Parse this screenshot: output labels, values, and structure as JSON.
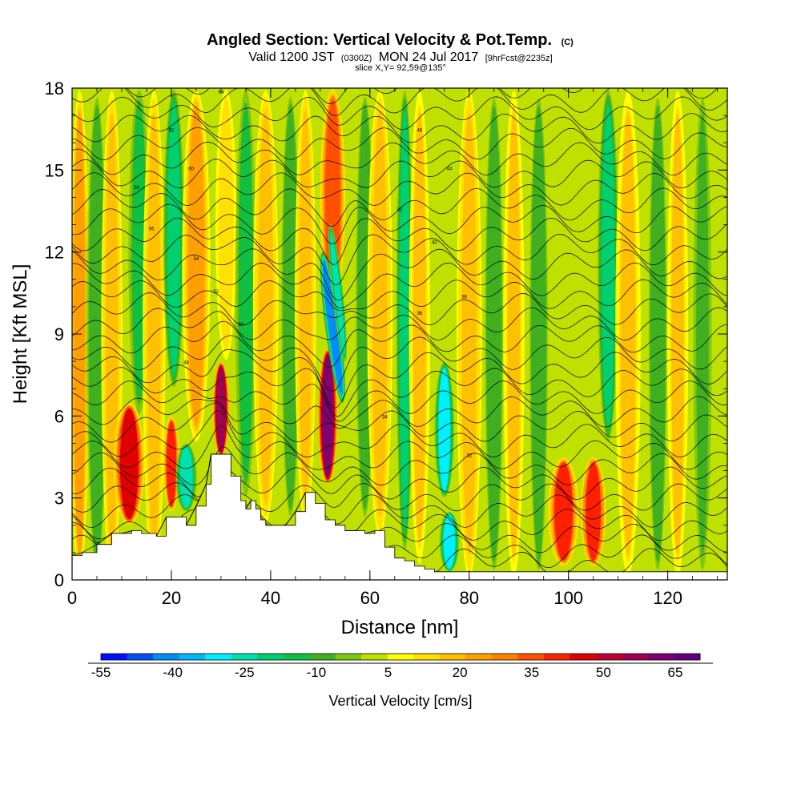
{
  "chart_data": {
    "type": "heatmap",
    "title": "Angled Section: Vertical Velocity & Pot.Temp.",
    "title_suffix": "(C)",
    "subtitle_main_a": "Valid 1200 JST",
    "subtitle_zulu": "(0300Z)",
    "subtitle_main_b": "MON 24 Jul 2017",
    "subtitle_fcst": "[9hrFcst@2235z]",
    "slice_text": "slice X,Y= 92,59@135°",
    "xlabel": "Distance [nm]",
    "ylabel": "Height [Kft MSL]",
    "xlim": [
      0,
      132
    ],
    "ylim": [
      0,
      18
    ],
    "x_ticks": [
      0,
      20,
      40,
      60,
      80,
      100,
      120
    ],
    "x_tick_labels": [
      "0",
      "20",
      "40",
      "60",
      "80",
      "100",
      "120"
    ],
    "y_ticks": [
      0,
      3,
      6,
      9,
      12,
      15,
      18
    ],
    "y_tick_labels": [
      "0",
      "3",
      "6",
      "9",
      "12",
      "15",
      "18"
    ],
    "colorbar": {
      "title": "Vertical Velocity [cm/s]",
      "tick_labels": [
        "-55",
        "-40",
        "-25",
        "-10",
        "5",
        "20",
        "35",
        "50",
        "65"
      ],
      "colors": [
        "#0010ff",
        "#0050f8",
        "#008ef5",
        "#00b8f8",
        "#00f0ff",
        "#00e0b0",
        "#00d070",
        "#10c040",
        "#40b020",
        "#80c810",
        "#c0e000",
        "#ffff00",
        "#ffe000",
        "#ffc000",
        "#ffa000",
        "#ff8000",
        "#ff5000",
        "#ff2000",
        "#e00000",
        "#c00030",
        "#a00050",
        "#800070",
        "#600080"
      ]
    },
    "field": {
      "background_value": 3,
      "columns": [
        {
          "x": 1.5,
          "w": 1.4,
          "z0": 0,
          "z1": 18,
          "v": 22
        },
        {
          "x": 5,
          "w": 1.6,
          "z0": 0,
          "z1": 18,
          "v": -12
        },
        {
          "x": 8,
          "w": 1.5,
          "z0": 0,
          "z1": 18,
          "v": 18
        },
        {
          "x": 11.5,
          "w": 2.2,
          "z0": 2,
          "z1": 6.5,
          "v": 45
        },
        {
          "x": 13.5,
          "w": 1.5,
          "z0": 6,
          "z1": 18,
          "v": -15
        },
        {
          "x": 16.5,
          "w": 1.6,
          "z0": 0,
          "z1": 18,
          "v": 20
        },
        {
          "x": 20,
          "w": 1.2,
          "z0": 2.5,
          "z1": 6,
          "v": 40
        },
        {
          "x": 20.5,
          "w": 1.5,
          "z0": 7,
          "z1": 18,
          "v": -18
        },
        {
          "x": 23,
          "w": 1.5,
          "z0": 2.5,
          "z1": 5,
          "v": -25
        },
        {
          "x": 25,
          "w": 2,
          "z0": 5,
          "z1": 18,
          "v": 22
        },
        {
          "x": 30,
          "w": 1.2,
          "z0": 4.5,
          "z1": 8,
          "v": 58
        },
        {
          "x": 31,
          "w": 1.5,
          "z0": 8,
          "z1": 18,
          "v": 15
        },
        {
          "x": 35,
          "w": 1.5,
          "z0": 3,
          "z1": 18,
          "v": -15
        },
        {
          "x": 39,
          "w": 1.8,
          "z0": 2,
          "z1": 18,
          "v": 18
        },
        {
          "x": 44,
          "w": 1.5,
          "z0": 2,
          "z1": 18,
          "v": -10
        },
        {
          "x": 47,
          "w": 1.5,
          "z0": 2,
          "z1": 18,
          "v": 18
        },
        {
          "x": 51.5,
          "w": 1.4,
          "z0": 3.5,
          "z1": 8.5,
          "v": 65
        },
        {
          "x": 52.5,
          "w": 1.8,
          "z0": 10,
          "z1": 18,
          "v": 38
        },
        {
          "x": 59,
          "w": 1.5,
          "z0": 2,
          "z1": 18,
          "v": -10
        },
        {
          "x": 62,
          "w": 1.8,
          "z0": 1.5,
          "z1": 18,
          "v": 18
        },
        {
          "x": 67,
          "w": 1.2,
          "z0": 1,
          "z1": 18,
          "v": -20
        },
        {
          "x": 70,
          "w": 1.5,
          "z0": 0.5,
          "z1": 18,
          "v": 16
        },
        {
          "x": 75,
          "w": 1.4,
          "z0": 3,
          "z1": 8,
          "v": -32
        },
        {
          "x": 76,
          "w": 1.4,
          "z0": 0.3,
          "z1": 2.5,
          "v": -30
        },
        {
          "x": 80,
          "w": 1.8,
          "z0": 0,
          "z1": 18,
          "v": 18
        },
        {
          "x": 85,
          "w": 1.5,
          "z0": 0,
          "z1": 18,
          "v": -12
        },
        {
          "x": 89,
          "w": 1.5,
          "z0": 0,
          "z1": 18,
          "v": 16
        },
        {
          "x": 94,
          "w": 1.5,
          "z0": 0,
          "z1": 18,
          "v": -10
        },
        {
          "x": 99,
          "w": 2.2,
          "z0": 0.5,
          "z1": 4.5,
          "v": 40
        },
        {
          "x": 105,
          "w": 1.8,
          "z0": 0.5,
          "z1": 4.5,
          "v": 42
        },
        {
          "x": 108,
          "w": 1.5,
          "z0": 5,
          "z1": 18,
          "v": -20
        },
        {
          "x": 112,
          "w": 1.8,
          "z0": 0,
          "z1": 18,
          "v": 16
        },
        {
          "x": 118,
          "w": 1.5,
          "z0": 0,
          "z1": 18,
          "v": -10
        },
        {
          "x": 122,
          "w": 1.5,
          "z0": 0,
          "z1": 18,
          "v": 16
        },
        {
          "x": 127,
          "w": 1.5,
          "z0": 0,
          "z1": 18,
          "v": -8
        }
      ],
      "slanted": [
        {
          "x0": 50.5,
          "z0": 12,
          "x1": 54.5,
          "z1": 6.5,
          "w": 1.1,
          "v": -45
        },
        {
          "x0": 52,
          "z0": 13,
          "x1": 55,
          "z1": 8,
          "w": 0.8,
          "v": -25
        }
      ]
    },
    "terrain": [
      [
        0,
        0.9
      ],
      [
        2,
        1.0
      ],
      [
        5,
        1.3
      ],
      [
        8,
        1.7
      ],
      [
        10,
        1.7
      ],
      [
        12,
        1.8
      ],
      [
        14,
        1.7
      ],
      [
        17,
        1.6
      ],
      [
        19,
        2.3
      ],
      [
        21,
        2.3
      ],
      [
        23,
        2.0
      ],
      [
        25,
        2.7
      ],
      [
        27,
        3.5
      ],
      [
        28,
        4.6
      ],
      [
        31,
        4.6
      ],
      [
        32,
        3.8
      ],
      [
        34,
        2.9
      ],
      [
        35,
        2.6
      ],
      [
        36,
        2.9
      ],
      [
        37,
        2.6
      ],
      [
        38,
        2.2
      ],
      [
        39,
        2.0
      ],
      [
        41,
        2.0
      ],
      [
        43,
        2.0
      ],
      [
        45,
        2.5
      ],
      [
        47,
        3.2
      ],
      [
        49,
        2.8
      ],
      [
        51,
        2.2
      ],
      [
        53,
        2.0
      ],
      [
        55,
        1.8
      ],
      [
        57,
        1.8
      ],
      [
        59,
        1.7
      ],
      [
        61,
        1.8
      ],
      [
        63,
        1.2
      ],
      [
        65,
        0.8
      ],
      [
        67,
        0.7
      ],
      [
        69,
        0.5
      ],
      [
        71,
        0.4
      ],
      [
        73,
        0.3
      ],
      [
        132,
        0.3
      ]
    ],
    "contour_labels": [
      "64",
      "62",
      "60",
      "58",
      "56",
      "54",
      "52",
      "50",
      "48",
      "46",
      "44",
      "42",
      "40",
      "38",
      "36",
      "34",
      "32"
    ]
  }
}
